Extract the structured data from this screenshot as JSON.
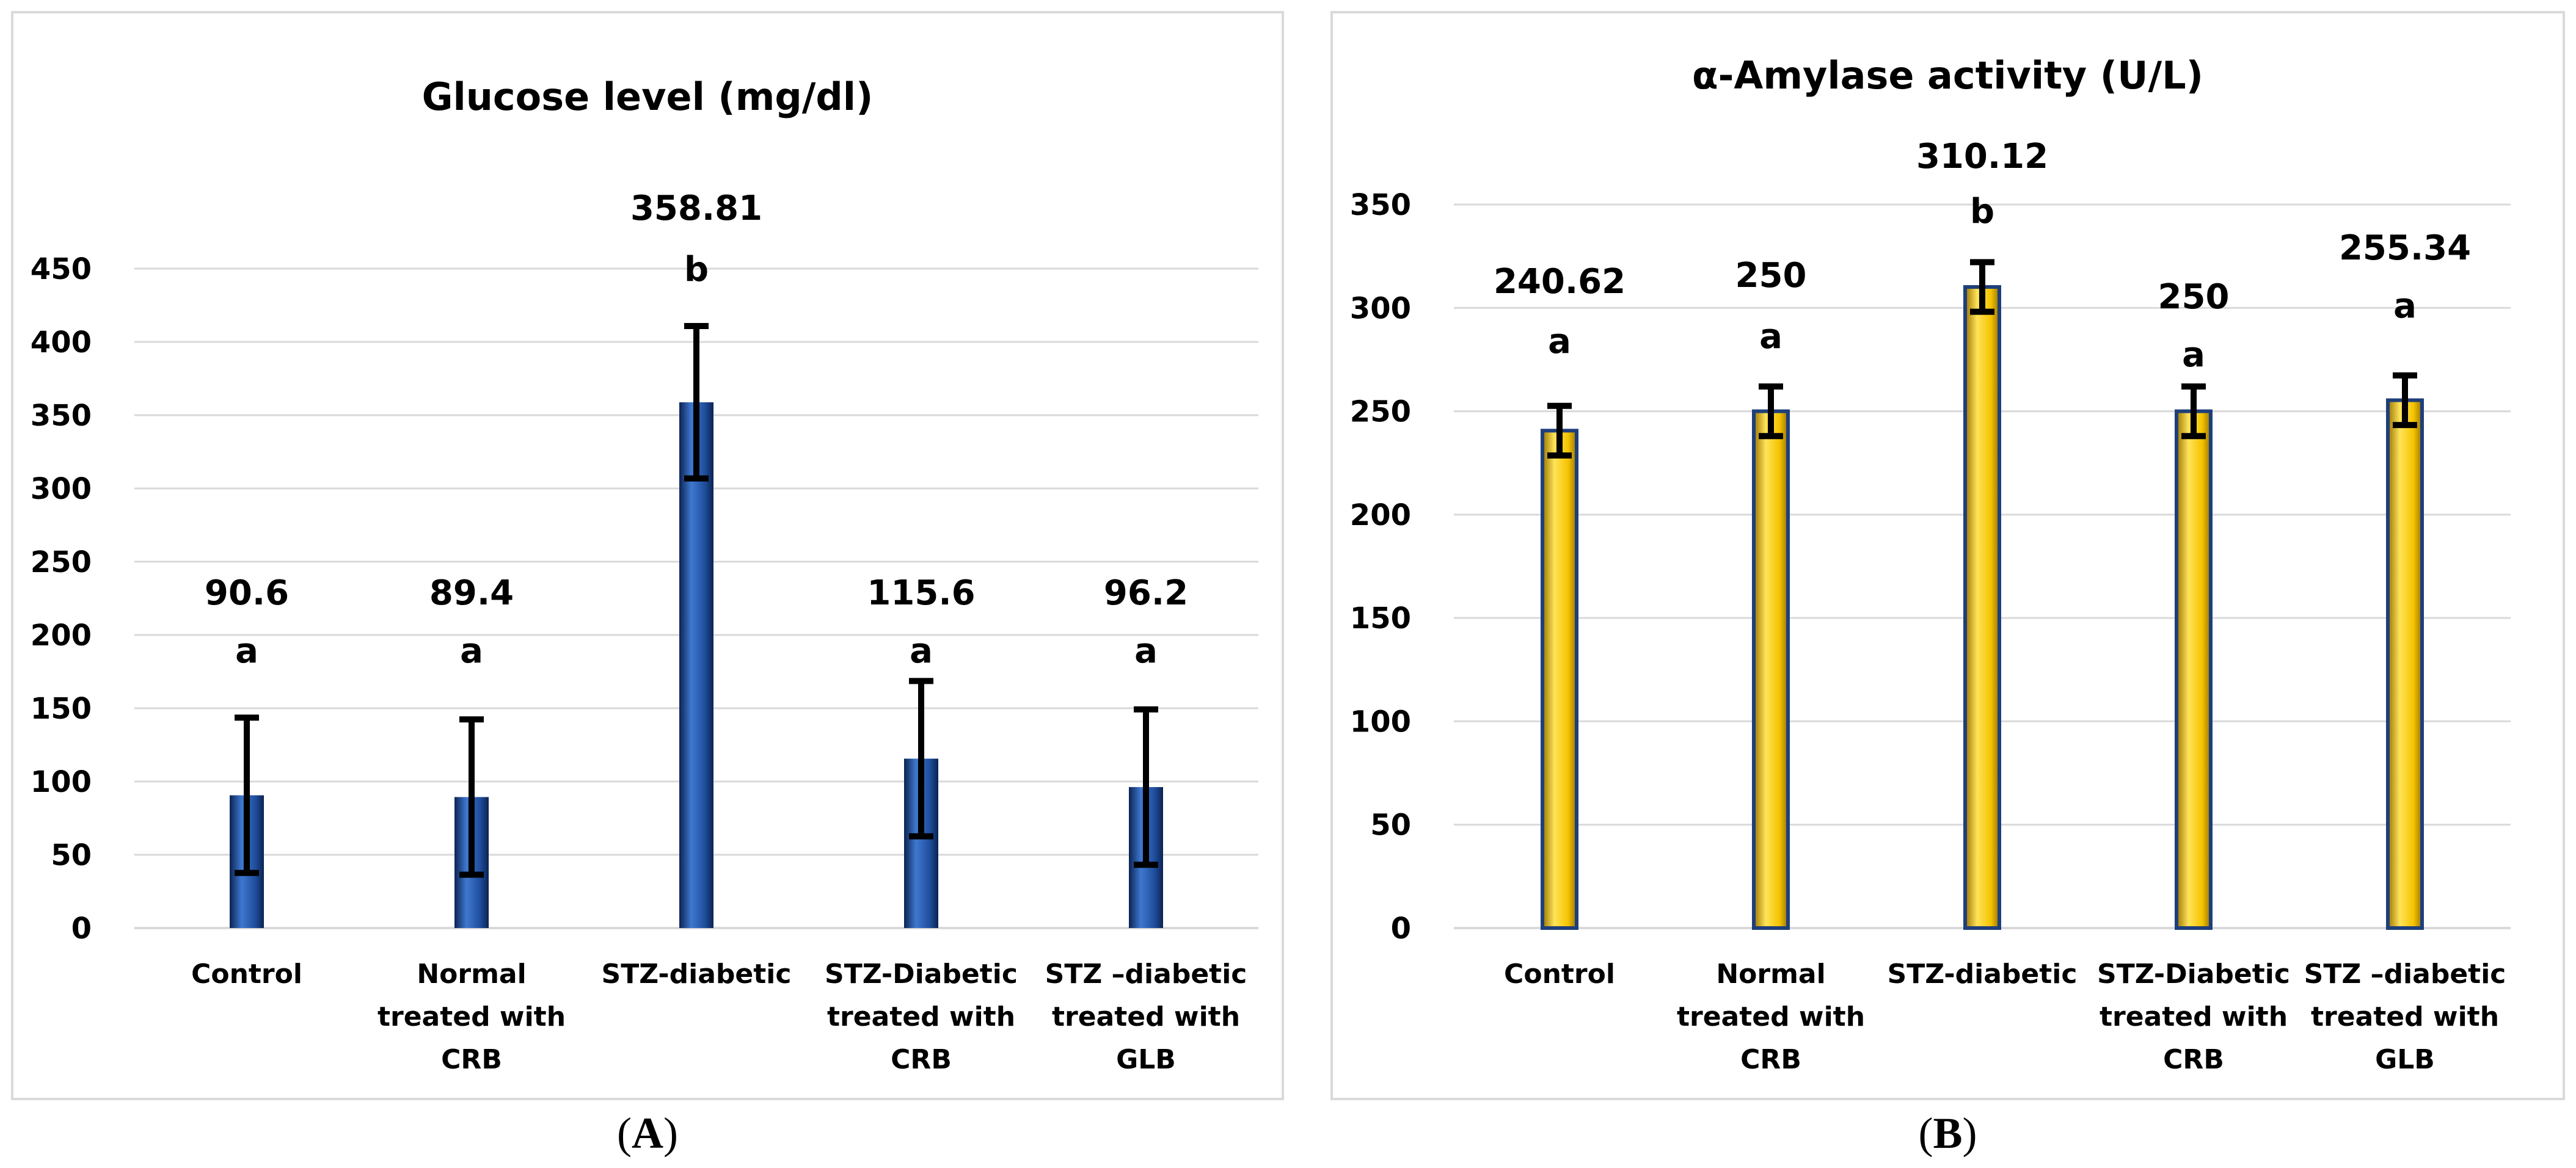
{
  "chart_data": [
    {
      "type": "bar",
      "title": "Glucose level (mg/dl)",
      "panel_label": "A",
      "panel_label_open": "(",
      "panel_label_close": ")",
      "categories": [
        [
          "Control"
        ],
        [
          "Normal",
          "treated with",
          "CRB"
        ],
        [
          "STZ-diabetic"
        ],
        [
          "STZ-Diabetic",
          "treated with",
          "CRB"
        ],
        [
          "STZ –diabetic",
          "treated with",
          "GLB"
        ]
      ],
      "values": [
        90.6,
        89.4,
        358.81,
        115.6,
        96.2
      ],
      "value_labels": [
        "90.6",
        "89.4",
        "358.81",
        "115.6",
        "96.2"
      ],
      "errors": [
        53,
        53,
        52,
        53,
        53
      ],
      "significance": [
        "a",
        "a",
        "b",
        "a",
        "a"
      ],
      "ylim": [
        0,
        450
      ],
      "yticks": [
        0,
        50,
        100,
        150,
        200,
        250,
        300,
        350,
        400,
        450
      ],
      "bar_color": "#1f4e9c",
      "bar_dark": "#0b2352",
      "bar_light": "#3f78d0",
      "xlabel": "",
      "ylabel": ""
    },
    {
      "type": "bar",
      "title": "α-Amylase activity (U/L)",
      "panel_label": "B",
      "panel_label_open": "(",
      "panel_label_close": ")",
      "categories": [
        [
          "Control"
        ],
        [
          "Normal",
          "treated with",
          "CRB"
        ],
        [
          "STZ-diabetic"
        ],
        [
          "STZ-Diabetic",
          "treated with",
          "CRB"
        ],
        [
          "STZ –diabetic",
          "treated with",
          "GLB"
        ]
      ],
      "values": [
        240.62,
        250,
        310.12,
        250,
        255.34
      ],
      "value_labels": [
        "240.62",
        "250",
        "310.12",
        "250",
        "255.34"
      ],
      "errors": [
        12,
        12,
        12,
        12,
        12
      ],
      "significance": [
        "a",
        "a",
        "b",
        "a",
        "a"
      ],
      "ylim": [
        0,
        350
      ],
      "yticks": [
        0,
        50,
        100,
        150,
        200,
        250,
        300,
        350
      ],
      "bar_color": "#f5c400",
      "bar_dark": "#9a7400",
      "bar_light": "#ffe35a",
      "bar_edge": "#1f3f7a",
      "xlabel": "",
      "ylabel": ""
    }
  ]
}
